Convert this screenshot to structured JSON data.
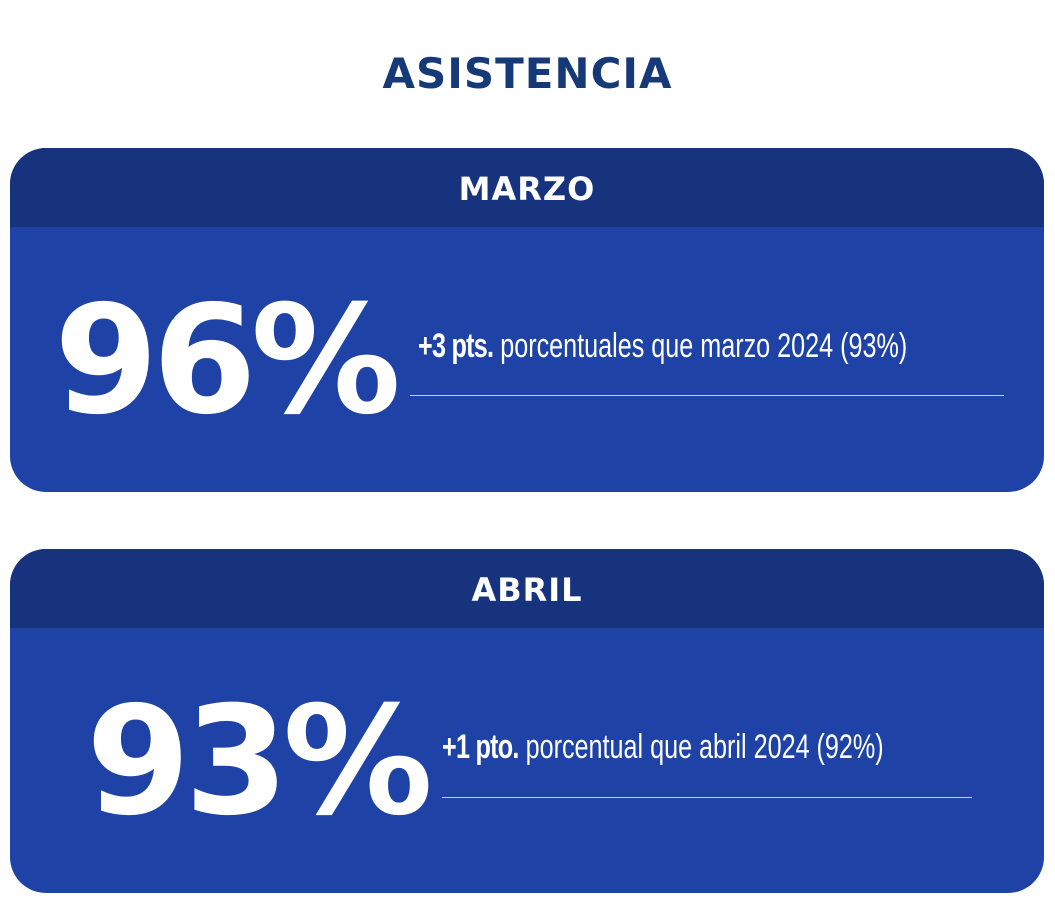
{
  "title": "ASISTENCIA",
  "colors": {
    "title": "#163a78",
    "card_header": "#17337d",
    "card_body": "#1e42a6",
    "text_on_card": "#ffffff"
  },
  "cards": [
    {
      "month": "MARZO",
      "value": "96%",
      "delta": "+3 pts.",
      "comparison": " porcentuales que marzo 2024 (93%)"
    },
    {
      "month": "ABRIL",
      "value": "93%",
      "delta": "+1 pto.",
      "comparison": " porcentual que abril 2024 (92%)"
    }
  ]
}
